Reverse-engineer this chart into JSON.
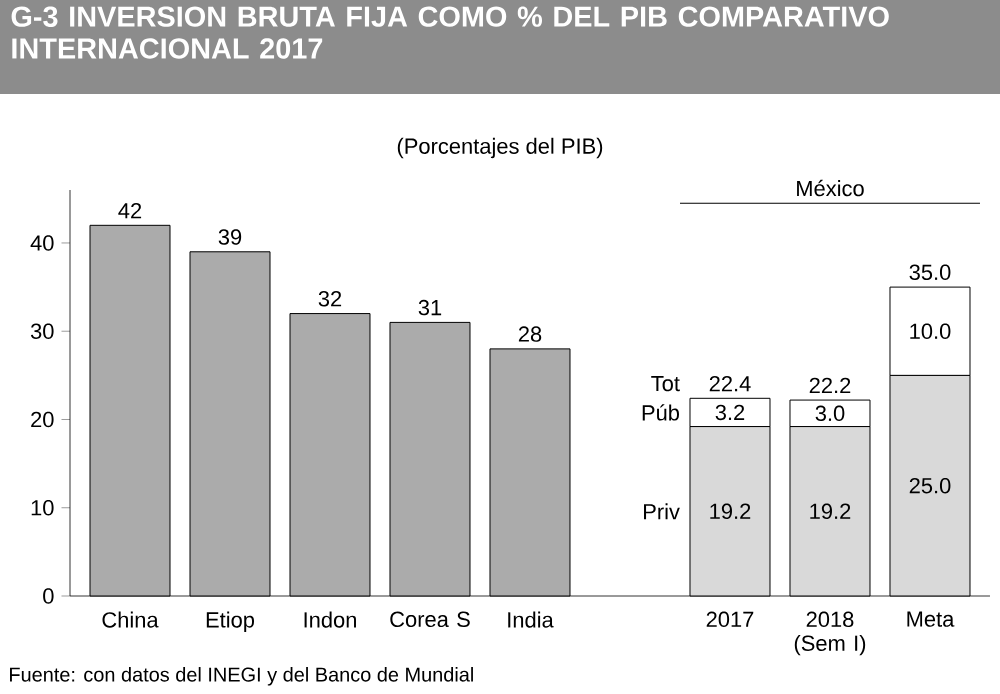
{
  "chart_data": {
    "type": "bar",
    "title": "G-3    INVERSION BRUTA FIJA COMO % DEL PIB  COMPARATIVO INTERNACIONAL 2017",
    "subtitle": "(Porcentajes del PIB)",
    "categories": [
      "China",
      "Etiop",
      "Indon",
      "Corea S",
      "India",
      null,
      "2017",
      "2018 (Sem I)",
      "Meta"
    ],
    "stacked": true,
    "series": [
      {
        "color": "#ababab",
        "values": [
          42,
          39,
          32,
          31,
          28,
          null,
          null,
          null,
          null
        ],
        "value_labels": [
          "42",
          "39",
          "32",
          "31",
          "28",
          null,
          null,
          null,
          null
        ]
      },
      {
        "name": "Priv",
        "color": "#d9d9d9",
        "values": [
          null,
          null,
          null,
          null,
          null,
          null,
          19.2,
          19.2,
          25.0
        ],
        "value_labels": [
          null,
          null,
          null,
          null,
          null,
          null,
          "19.2",
          "19.2",
          "25.0"
        ]
      },
      {
        "name": "Púb",
        "color": "#ffffff",
        "values": [
          null,
          null,
          null,
          null,
          null,
          null,
          3.2,
          3.0,
          10.0
        ],
        "value_labels": [
          null,
          null,
          null,
          null,
          null,
          null,
          "3.2",
          "3.0",
          "10.0"
        ]
      }
    ],
    "totals": [
      null,
      null,
      null,
      null,
      null,
      null,
      "22.4",
      "22.2",
      "35.0"
    ],
    "ylim": [
      0,
      46
    ],
    "yticks": [
      0,
      10,
      20,
      30,
      40
    ],
    "annotations": [
      "Tot",
      "México",
      "Fuente: con datos del INEGI y del Banco de Mundial"
    ]
  }
}
